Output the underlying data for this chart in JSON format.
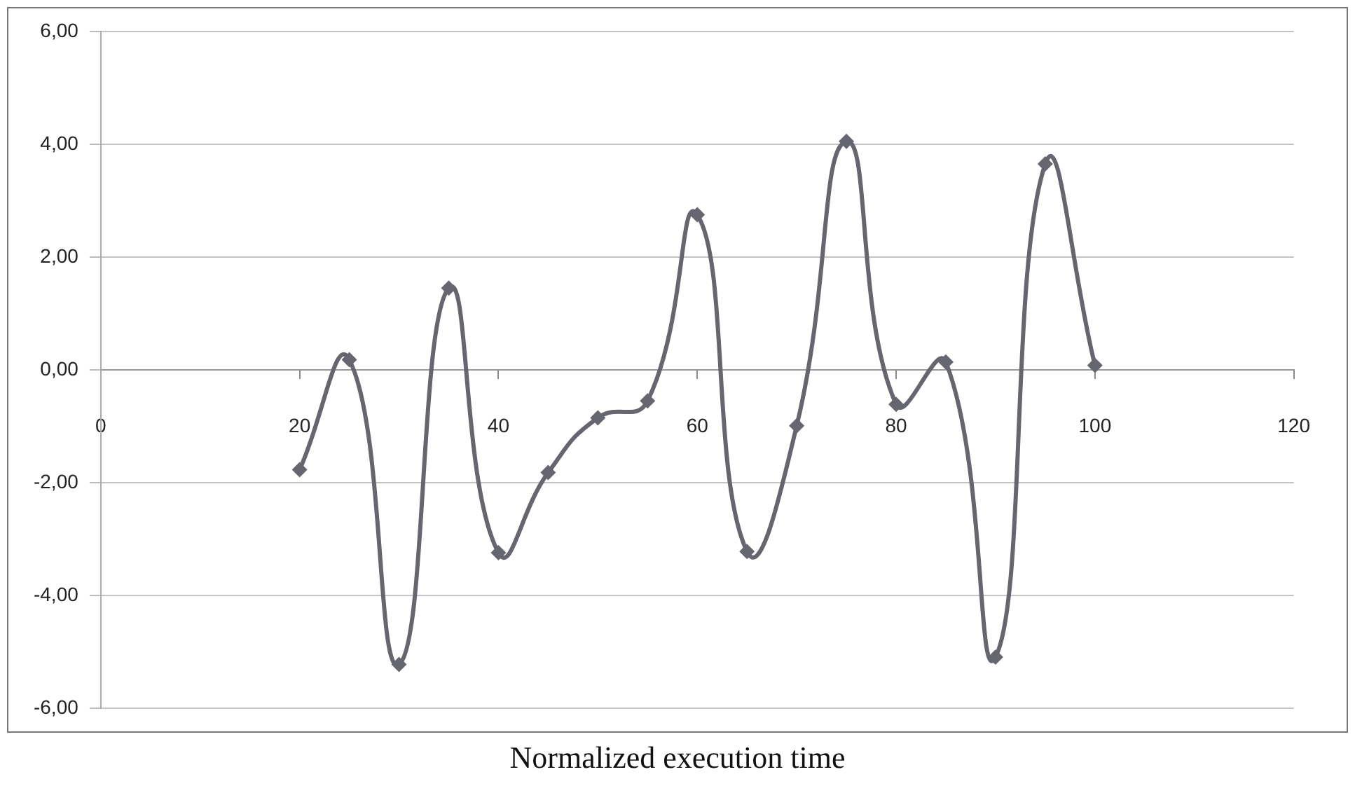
{
  "chart_data": {
    "type": "line",
    "xlabel": "Normalized execution time",
    "x": [
      20,
      25,
      30,
      35,
      40,
      45,
      50,
      55,
      60,
      65,
      70,
      75,
      80,
      85,
      90,
      95,
      100
    ],
    "series": [
      {
        "color": "#666670",
        "values": [
          -1.77,
          0.18,
          -5.22,
          1.45,
          -3.24,
          -1.82,
          -0.85,
          -0.55,
          2.75,
          -3.22,
          -0.99,
          4.05,
          -0.61,
          0.14,
          -5.09,
          3.65,
          0.08
        ]
      }
    ],
    "xlim": [
      0,
      120
    ],
    "xticks": [
      0,
      20,
      40,
      60,
      80,
      100,
      120
    ],
    "ylim": [
      -6,
      6
    ],
    "yticks": [
      {
        "value": -6,
        "label": "-6,00"
      },
      {
        "value": -4,
        "label": "-4,00"
      },
      {
        "value": -2,
        "label": "-2,00"
      },
      {
        "value": 0,
        "label": "0,00"
      },
      {
        "value": 2,
        "label": "2,00"
      },
      {
        "value": 4,
        "label": "4,00"
      },
      {
        "value": 6,
        "label": "6,00"
      }
    ],
    "grid": "y",
    "marker": "diamond",
    "line_style": "solid",
    "legend": false
  }
}
